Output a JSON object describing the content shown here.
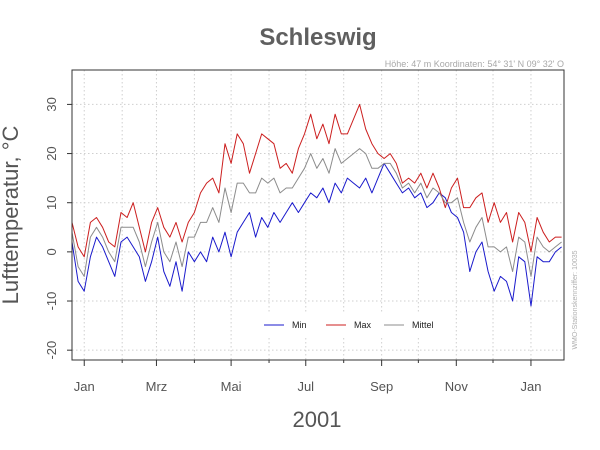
{
  "chart_data": {
    "type": "line",
    "title": "Schleswig",
    "subtitle": "Höhe: 47 m   Koordinaten: 54° 31' N  09° 32' O",
    "side_note": "WMO-Stationskennziffer: 10035",
    "xlabel": "2001",
    "ylabel": "Lufttemperatur, °C",
    "ylim": [
      -22,
      37
    ],
    "xlim_days": [
      -10,
      392
    ],
    "y_ticks": [
      -20,
      -10,
      0,
      10,
      20,
      30
    ],
    "y_tick_labels": [
      "-20",
      "-10",
      "0",
      "10",
      "20",
      "30"
    ],
    "x_ticks": [
      {
        "label": "Jan",
        "day": 0
      },
      {
        "label": "Mrz",
        "day": 59
      },
      {
        "label": "Mai",
        "day": 120
      },
      {
        "label": "Jul",
        "day": 181
      },
      {
        "label": "Sep",
        "day": 243
      },
      {
        "label": "Nov",
        "day": 304
      },
      {
        "label": "Jan",
        "day": 365
      }
    ],
    "x_minor_days": [
      31,
      90,
      151,
      212,
      273,
      334
    ],
    "grid": true,
    "legend_position": "bottom-right",
    "x_unit": "day of year 2001 (0 = 1 Jan)",
    "x": [
      -10,
      -5,
      0,
      5,
      10,
      15,
      20,
      25,
      30,
      35,
      40,
      45,
      50,
      55,
      60,
      65,
      70,
      75,
      80,
      85,
      90,
      95,
      100,
      105,
      110,
      115,
      120,
      125,
      130,
      135,
      140,
      145,
      150,
      155,
      160,
      165,
      170,
      175,
      180,
      185,
      190,
      195,
      200,
      205,
      210,
      215,
      220,
      225,
      230,
      235,
      240,
      245,
      250,
      255,
      260,
      265,
      270,
      275,
      280,
      285,
      290,
      295,
      300,
      305,
      310,
      315,
      320,
      325,
      330,
      335,
      340,
      345,
      350,
      355,
      360,
      365,
      370,
      375,
      380,
      385,
      390
    ],
    "series": [
      {
        "name": "Min",
        "color": "#1a1acc",
        "values": [
          2,
          -6,
          -8,
          -1,
          3,
          1,
          -2,
          -5,
          2,
          3,
          1,
          -1,
          -6,
          -2,
          3,
          -4,
          -7,
          -2,
          -8,
          0,
          -2,
          0,
          -2,
          3,
          0,
          4,
          -1,
          4,
          6,
          8,
          3,
          7,
          5,
          8,
          6,
          8,
          10,
          8,
          10,
          12,
          11,
          13,
          10,
          14,
          12,
          15,
          14,
          13,
          15,
          12,
          15,
          18,
          16,
          14,
          12,
          13,
          11,
          12,
          9,
          10,
          12,
          11,
          8,
          7,
          4,
          -4,
          0,
          2,
          -4,
          -8,
          -5,
          -6,
          -10,
          -1,
          -2,
          -11,
          -1,
          -2,
          -2,
          0,
          1
        ]
      },
      {
        "name": "Max",
        "color": "#cc1f1f",
        "values": [
          6,
          1,
          -1,
          6,
          7,
          5,
          2,
          1,
          8,
          7,
          10,
          5,
          0,
          6,
          9,
          5,
          3,
          6,
          2,
          6,
          8,
          12,
          14,
          15,
          12,
          22,
          18,
          24,
          22,
          16,
          20,
          24,
          23,
          22,
          17,
          18,
          16,
          21,
          24,
          28,
          23,
          26,
          22,
          28,
          24,
          24,
          27,
          30,
          25,
          22,
          20,
          19,
          20,
          18,
          14,
          15,
          14,
          16,
          13,
          16,
          13,
          9,
          13,
          15,
          9,
          9,
          11,
          12,
          6,
          10,
          6,
          8,
          2,
          8,
          6,
          0,
          7,
          4,
          2,
          3,
          3
        ]
      },
      {
        "name": "Mittel",
        "color": "#8c8c8c",
        "values": [
          4,
          -3,
          -5,
          3,
          5,
          3,
          0,
          -2,
          5,
          5,
          5,
          2,
          -3,
          2,
          6,
          0,
          -2,
          2,
          -3,
          3,
          3,
          6,
          6,
          9,
          6,
          13,
          8,
          14,
          14,
          12,
          12,
          15,
          14,
          15,
          12,
          13,
          13,
          15,
          17,
          20,
          17,
          19,
          16,
          21,
          18,
          19,
          20,
          21,
          20,
          17,
          17,
          18,
          18,
          16,
          13,
          14,
          12,
          14,
          11,
          13,
          12,
          10,
          10,
          11,
          6,
          2,
          5,
          7,
          1,
          1,
          0,
          1,
          -4,
          3,
          2,
          -5,
          3,
          1,
          0,
          1,
          2
        ]
      }
    ]
  }
}
